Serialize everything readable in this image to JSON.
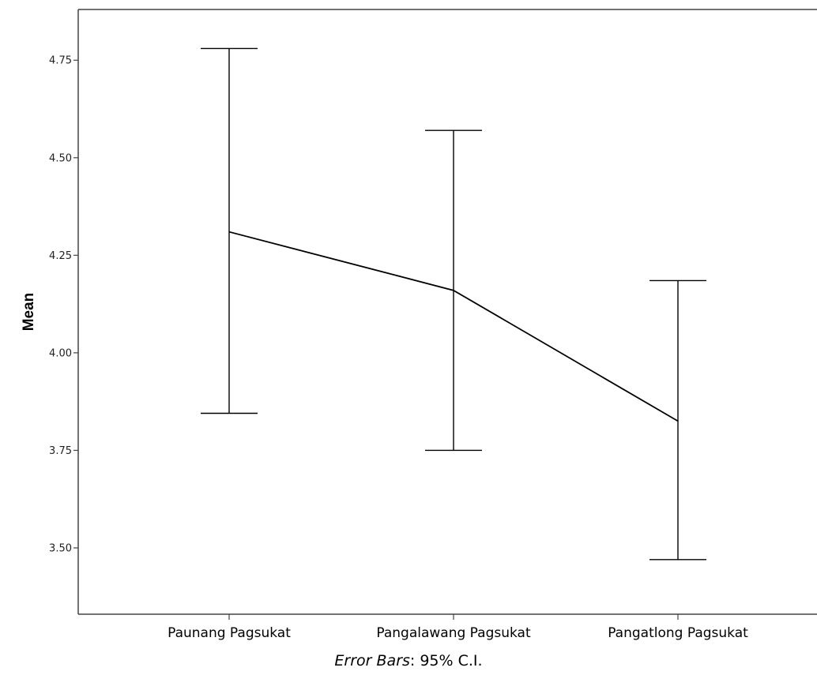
{
  "chart_data": {
    "type": "line",
    "categories": [
      "Paunang Pagsukat",
      "Pangalawang Pagsukat",
      "Pangatlong Pagsukat"
    ],
    "values": [
      4.31,
      4.16,
      3.825
    ],
    "error_bars": {
      "lower": [
        3.845,
        3.75,
        3.47
      ],
      "upper": [
        4.78,
        4.57,
        4.185
      ]
    },
    "ylabel": "Mean",
    "xlabel": "",
    "ylim": [
      3.33,
      4.88
    ],
    "yticks": [
      3.5,
      3.75,
      4.0,
      4.25,
      4.5,
      4.75
    ],
    "ytick_labels": [
      "3.50",
      "3.75",
      "4.00",
      "4.25",
      "4.50",
      "4.75"
    ],
    "grid": false,
    "footnote": {
      "italic_part": "Error Bars",
      "rest": ": 95% C.I."
    },
    "colors": {
      "line": "#000000",
      "axis": "#444444"
    }
  }
}
